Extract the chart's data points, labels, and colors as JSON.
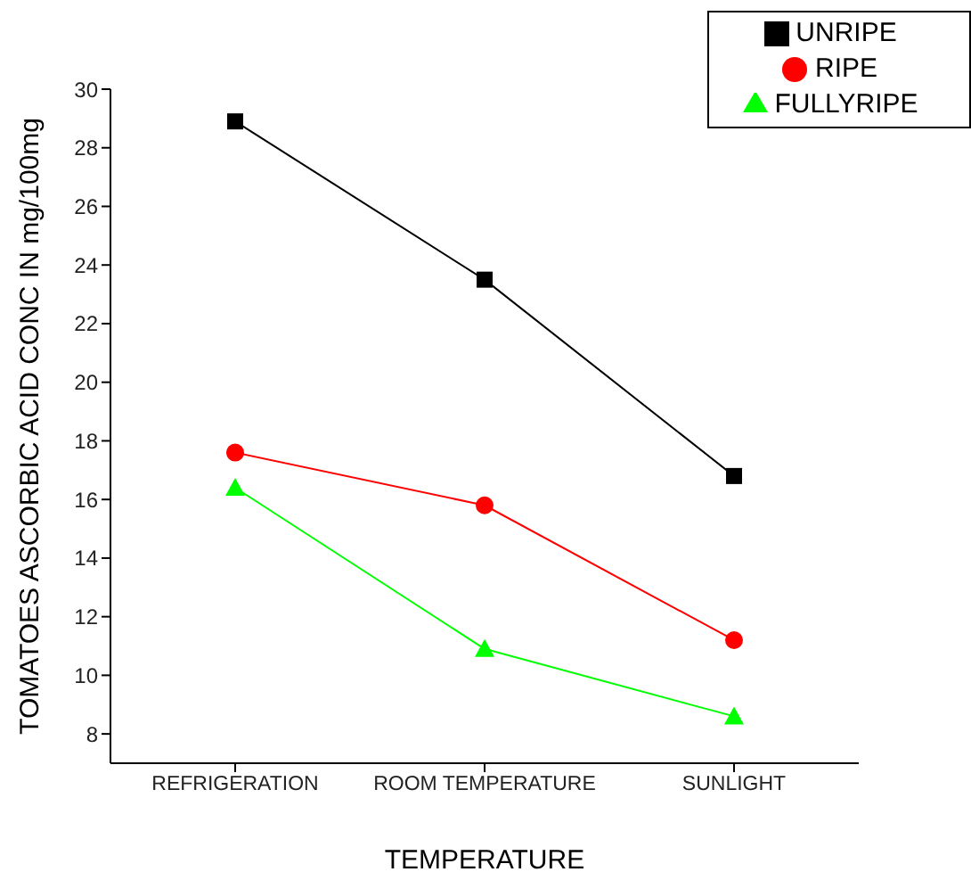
{
  "chart_data": {
    "type": "line",
    "xlabel": "TEMPERATURE",
    "ylabel": "TOMATOES ASCORBIC ACID CONC IN mg/100mg",
    "categories": [
      "REFRIGERATION",
      "ROOM TEMPERATURE",
      "SUNLIGHT"
    ],
    "series": [
      {
        "name": "UNRIPE",
        "color": "#000000",
        "marker": "square",
        "values": [
          28.9,
          23.5,
          16.8
        ]
      },
      {
        "name": "RIPE",
        "color": "#ff0000",
        "marker": "circle",
        "values": [
          17.6,
          15.8,
          11.2
        ]
      },
      {
        "name": "FULLYRIPE",
        "color": "#00ff00",
        "marker": "triangle",
        "values": [
          16.4,
          10.9,
          8.6
        ]
      }
    ],
    "ylim": [
      7,
      30
    ],
    "yticks": [
      8,
      10,
      12,
      14,
      16,
      18,
      20,
      22,
      24,
      26,
      28,
      30
    ],
    "grid": false,
    "legend": "top right"
  }
}
